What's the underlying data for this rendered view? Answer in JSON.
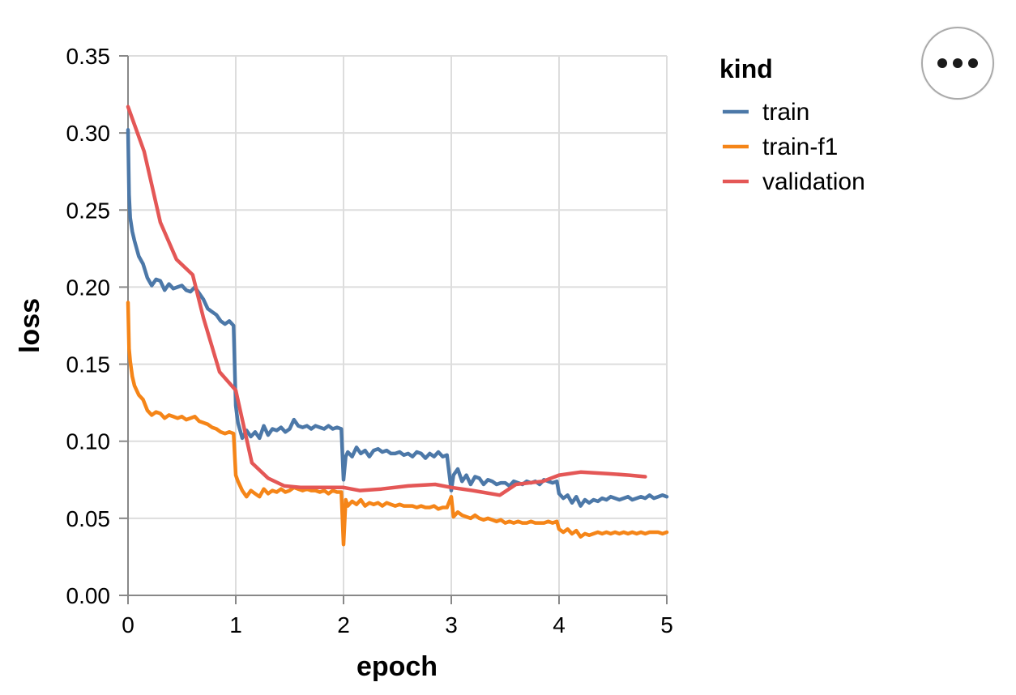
{
  "chart_data": {
    "type": "line",
    "xlabel": "epoch",
    "ylabel": "loss",
    "xlim": [
      0,
      5
    ],
    "ylim": [
      0,
      0.35
    ],
    "x_ticks": [
      "0",
      "1",
      "2",
      "3",
      "4",
      "5"
    ],
    "y_ticks": [
      "0.00",
      "0.05",
      "0.10",
      "0.15",
      "0.20",
      "0.25",
      "0.30",
      "0.35"
    ],
    "grid": true,
    "legend": {
      "title": "kind",
      "position": "right"
    },
    "series": [
      {
        "name": "train",
        "color": "#4c78a8",
        "x": [
          0.0,
          0.01,
          0.02,
          0.04,
          0.06,
          0.1,
          0.14,
          0.18,
          0.22,
          0.26,
          0.3,
          0.34,
          0.38,
          0.42,
          0.46,
          0.5,
          0.54,
          0.58,
          0.62,
          0.66,
          0.7,
          0.74,
          0.78,
          0.82,
          0.86,
          0.9,
          0.94,
          0.98,
          1.0,
          1.02,
          1.06,
          1.1,
          1.14,
          1.18,
          1.22,
          1.26,
          1.3,
          1.34,
          1.38,
          1.42,
          1.46,
          1.5,
          1.54,
          1.58,
          1.62,
          1.66,
          1.7,
          1.74,
          1.78,
          1.82,
          1.86,
          1.9,
          1.94,
          1.98,
          2.0,
          2.02,
          2.04,
          2.08,
          2.12,
          2.16,
          2.2,
          2.24,
          2.28,
          2.32,
          2.36,
          2.4,
          2.44,
          2.48,
          2.52,
          2.56,
          2.6,
          2.64,
          2.68,
          2.72,
          2.76,
          2.8,
          2.84,
          2.88,
          2.92,
          2.96,
          3.0,
          3.02,
          3.06,
          3.1,
          3.14,
          3.18,
          3.22,
          3.26,
          3.3,
          3.34,
          3.38,
          3.42,
          3.46,
          3.5,
          3.54,
          3.58,
          3.62,
          3.66,
          3.7,
          3.74,
          3.78,
          3.82,
          3.86,
          3.9,
          3.94,
          3.98,
          4.0,
          4.04,
          4.08,
          4.12,
          4.16,
          4.2,
          4.24,
          4.28,
          4.32,
          4.36,
          4.4,
          4.44,
          4.48,
          4.52,
          4.56,
          4.6,
          4.64,
          4.68,
          4.72,
          4.76,
          4.8,
          4.84,
          4.88,
          4.92,
          4.96,
          5.0
        ],
        "y": [
          0.302,
          0.26,
          0.245,
          0.236,
          0.23,
          0.22,
          0.215,
          0.206,
          0.201,
          0.205,
          0.204,
          0.198,
          0.202,
          0.199,
          0.2,
          0.201,
          0.198,
          0.197,
          0.2,
          0.196,
          0.192,
          0.186,
          0.184,
          0.182,
          0.178,
          0.176,
          0.178,
          0.175,
          0.123,
          0.112,
          0.102,
          0.107,
          0.103,
          0.106,
          0.102,
          0.11,
          0.104,
          0.108,
          0.107,
          0.109,
          0.106,
          0.108,
          0.114,
          0.11,
          0.109,
          0.11,
          0.108,
          0.11,
          0.109,
          0.108,
          0.11,
          0.108,
          0.109,
          0.108,
          0.075,
          0.09,
          0.093,
          0.09,
          0.096,
          0.092,
          0.094,
          0.09,
          0.094,
          0.095,
          0.093,
          0.094,
          0.092,
          0.092,
          0.093,
          0.091,
          0.092,
          0.09,
          0.093,
          0.092,
          0.089,
          0.092,
          0.09,
          0.093,
          0.09,
          0.091,
          0.068,
          0.078,
          0.082,
          0.074,
          0.078,
          0.072,
          0.077,
          0.076,
          0.072,
          0.075,
          0.074,
          0.072,
          0.073,
          0.073,
          0.071,
          0.074,
          0.073,
          0.072,
          0.074,
          0.073,
          0.074,
          0.072,
          0.075,
          0.074,
          0.073,
          0.074,
          0.066,
          0.063,
          0.065,
          0.06,
          0.064,
          0.058,
          0.062,
          0.06,
          0.062,
          0.061,
          0.063,
          0.062,
          0.064,
          0.063,
          0.062,
          0.063,
          0.064,
          0.062,
          0.063,
          0.064,
          0.063,
          0.065,
          0.063,
          0.064,
          0.065,
          0.064
        ]
      },
      {
        "name": "train-f1",
        "color": "#f58518",
        "x": [
          0.0,
          0.01,
          0.02,
          0.04,
          0.06,
          0.1,
          0.14,
          0.18,
          0.22,
          0.26,
          0.3,
          0.34,
          0.38,
          0.42,
          0.46,
          0.5,
          0.54,
          0.58,
          0.62,
          0.66,
          0.7,
          0.74,
          0.78,
          0.82,
          0.86,
          0.9,
          0.94,
          0.98,
          1.0,
          1.02,
          1.06,
          1.1,
          1.14,
          1.18,
          1.22,
          1.26,
          1.3,
          1.34,
          1.38,
          1.42,
          1.46,
          1.5,
          1.54,
          1.58,
          1.62,
          1.66,
          1.7,
          1.74,
          1.78,
          1.82,
          1.86,
          1.9,
          1.94,
          1.98,
          2.0,
          2.02,
          2.04,
          2.08,
          2.12,
          2.16,
          2.2,
          2.24,
          2.28,
          2.32,
          2.36,
          2.4,
          2.44,
          2.48,
          2.52,
          2.56,
          2.6,
          2.64,
          2.68,
          2.72,
          2.76,
          2.8,
          2.84,
          2.88,
          2.92,
          2.96,
          3.0,
          3.02,
          3.06,
          3.1,
          3.14,
          3.18,
          3.22,
          3.26,
          3.3,
          3.34,
          3.38,
          3.42,
          3.46,
          3.5,
          3.54,
          3.58,
          3.62,
          3.66,
          3.7,
          3.74,
          3.78,
          3.82,
          3.86,
          3.9,
          3.94,
          3.98,
          4.0,
          4.04,
          4.08,
          4.12,
          4.16,
          4.2,
          4.24,
          4.28,
          4.32,
          4.36,
          4.4,
          4.44,
          4.48,
          4.52,
          4.56,
          4.6,
          4.64,
          4.68,
          4.72,
          4.76,
          4.8,
          4.84,
          4.88,
          4.92,
          4.96,
          5.0
        ],
        "y": [
          0.19,
          0.16,
          0.152,
          0.142,
          0.136,
          0.13,
          0.127,
          0.12,
          0.117,
          0.119,
          0.118,
          0.115,
          0.117,
          0.116,
          0.115,
          0.116,
          0.114,
          0.115,
          0.116,
          0.113,
          0.112,
          0.111,
          0.109,
          0.108,
          0.106,
          0.105,
          0.106,
          0.105,
          0.078,
          0.074,
          0.068,
          0.064,
          0.068,
          0.066,
          0.064,
          0.069,
          0.066,
          0.068,
          0.067,
          0.069,
          0.067,
          0.068,
          0.07,
          0.069,
          0.068,
          0.069,
          0.068,
          0.068,
          0.067,
          0.068,
          0.066,
          0.068,
          0.067,
          0.067,
          0.033,
          0.062,
          0.058,
          0.061,
          0.059,
          0.062,
          0.058,
          0.06,
          0.059,
          0.06,
          0.058,
          0.06,
          0.059,
          0.058,
          0.059,
          0.058,
          0.058,
          0.058,
          0.057,
          0.058,
          0.057,
          0.057,
          0.058,
          0.056,
          0.057,
          0.057,
          0.064,
          0.051,
          0.054,
          0.052,
          0.051,
          0.05,
          0.052,
          0.05,
          0.049,
          0.05,
          0.049,
          0.048,
          0.049,
          0.047,
          0.048,
          0.047,
          0.048,
          0.047,
          0.047,
          0.048,
          0.047,
          0.047,
          0.047,
          0.048,
          0.047,
          0.048,
          0.043,
          0.041,
          0.043,
          0.04,
          0.042,
          0.038,
          0.04,
          0.039,
          0.04,
          0.041,
          0.04,
          0.041,
          0.04,
          0.041,
          0.04,
          0.041,
          0.04,
          0.041,
          0.04,
          0.041,
          0.04,
          0.041,
          0.041,
          0.041,
          0.04,
          0.041
        ]
      },
      {
        "name": "validation",
        "color": "#e45756",
        "x": [
          0.0,
          0.15,
          0.3,
          0.45,
          0.6,
          0.7,
          0.85,
          1.0,
          1.15,
          1.3,
          1.45,
          1.6,
          1.8,
          2.0,
          2.15,
          2.35,
          2.6,
          2.85,
          3.0,
          3.2,
          3.45,
          3.6,
          3.85,
          4.0,
          4.2,
          4.45,
          4.65,
          4.8
        ],
        "y": [
          0.317,
          0.288,
          0.242,
          0.218,
          0.208,
          0.18,
          0.145,
          0.133,
          0.086,
          0.076,
          0.071,
          0.07,
          0.07,
          0.07,
          0.068,
          0.069,
          0.071,
          0.072,
          0.07,
          0.068,
          0.065,
          0.072,
          0.074,
          0.078,
          0.08,
          0.079,
          0.078,
          0.077
        ]
      }
    ]
  }
}
